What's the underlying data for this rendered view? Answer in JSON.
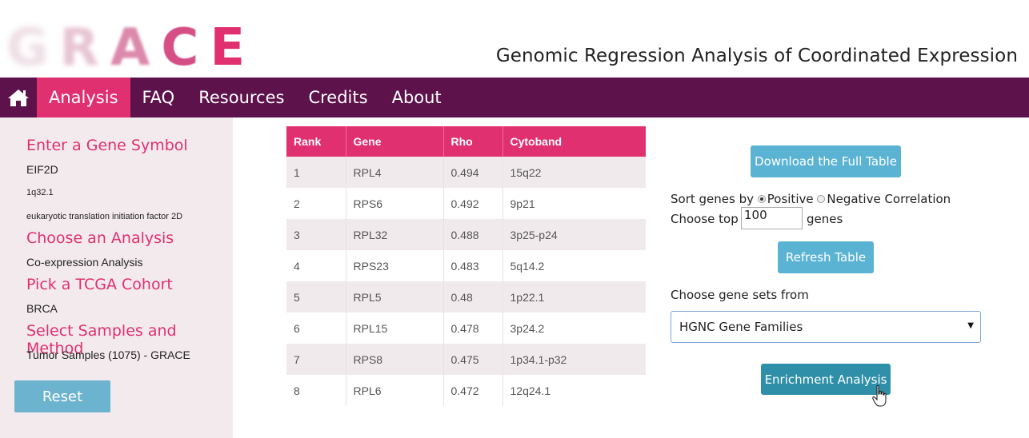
{
  "logo": {
    "letters": [
      "G",
      "R",
      "A",
      "C",
      "E"
    ]
  },
  "header": {
    "subtitle": "Genomic Regression Analysis of Coordinated Expression"
  },
  "nav": {
    "home_icon": "home-icon",
    "items": [
      {
        "label": "Analysis",
        "active": true
      },
      {
        "label": "FAQ",
        "active": false
      },
      {
        "label": "Resources",
        "active": false
      },
      {
        "label": "Credits",
        "active": false
      },
      {
        "label": "About",
        "active": false
      }
    ]
  },
  "sidebar": {
    "gene_heading": "Enter a Gene Symbol",
    "gene_symbol": "EIF2D",
    "gene_locus": "1q32.1",
    "gene_description": "eukaryotic translation initiation factor 2D",
    "analysis_heading": "Choose an Analysis",
    "analysis_value": "Co-expression Analysis",
    "cohort_heading": "Pick a TCGA Cohort",
    "cohort_value": "BRCA",
    "samples_heading": "Select Samples and Method",
    "samples_value": "Tumor Samples (1075) - GRACE",
    "reset_label": "Reset"
  },
  "table": {
    "headers": [
      "Rank",
      "Gene",
      "Rho",
      "Cytoband"
    ],
    "rows": [
      [
        "1",
        "RPL4",
        "0.494",
        "15q22"
      ],
      [
        "2",
        "RPS6",
        "0.492",
        "9p21"
      ],
      [
        "3",
        "RPL32",
        "0.488",
        "3p25-p24"
      ],
      [
        "4",
        "RPS23",
        "0.483",
        "5q14.2"
      ],
      [
        "5",
        "RPL5",
        "0.48",
        "1p22.1"
      ],
      [
        "6",
        "RPL15",
        "0.478",
        "3p24.2"
      ],
      [
        "7",
        "RPS8",
        "0.475",
        "1p34.1-p32"
      ],
      [
        "8",
        "RPL6",
        "0.472",
        "12q24.1"
      ]
    ]
  },
  "panel": {
    "download_label": "Download the Full Table",
    "sort_label": "Sort genes by",
    "positive_label": "Positive",
    "negative_label": "Negative Correlation",
    "sort_selected": "Positive",
    "choose_top_label": "Choose top",
    "top_value": "100",
    "genes_label": "genes",
    "refresh_label": "Refresh Table",
    "gene_sets_label": "Choose gene sets from",
    "gene_sets_selected": "HGNC Gene Families",
    "enrichment_label": "Enrichment Analysis"
  },
  "colors": {
    "brand_pink": "#e0306f",
    "nav_purple": "#5e124c",
    "button_blue": "#5bb3d3",
    "sidebar_bg": "#f3eaee"
  }
}
